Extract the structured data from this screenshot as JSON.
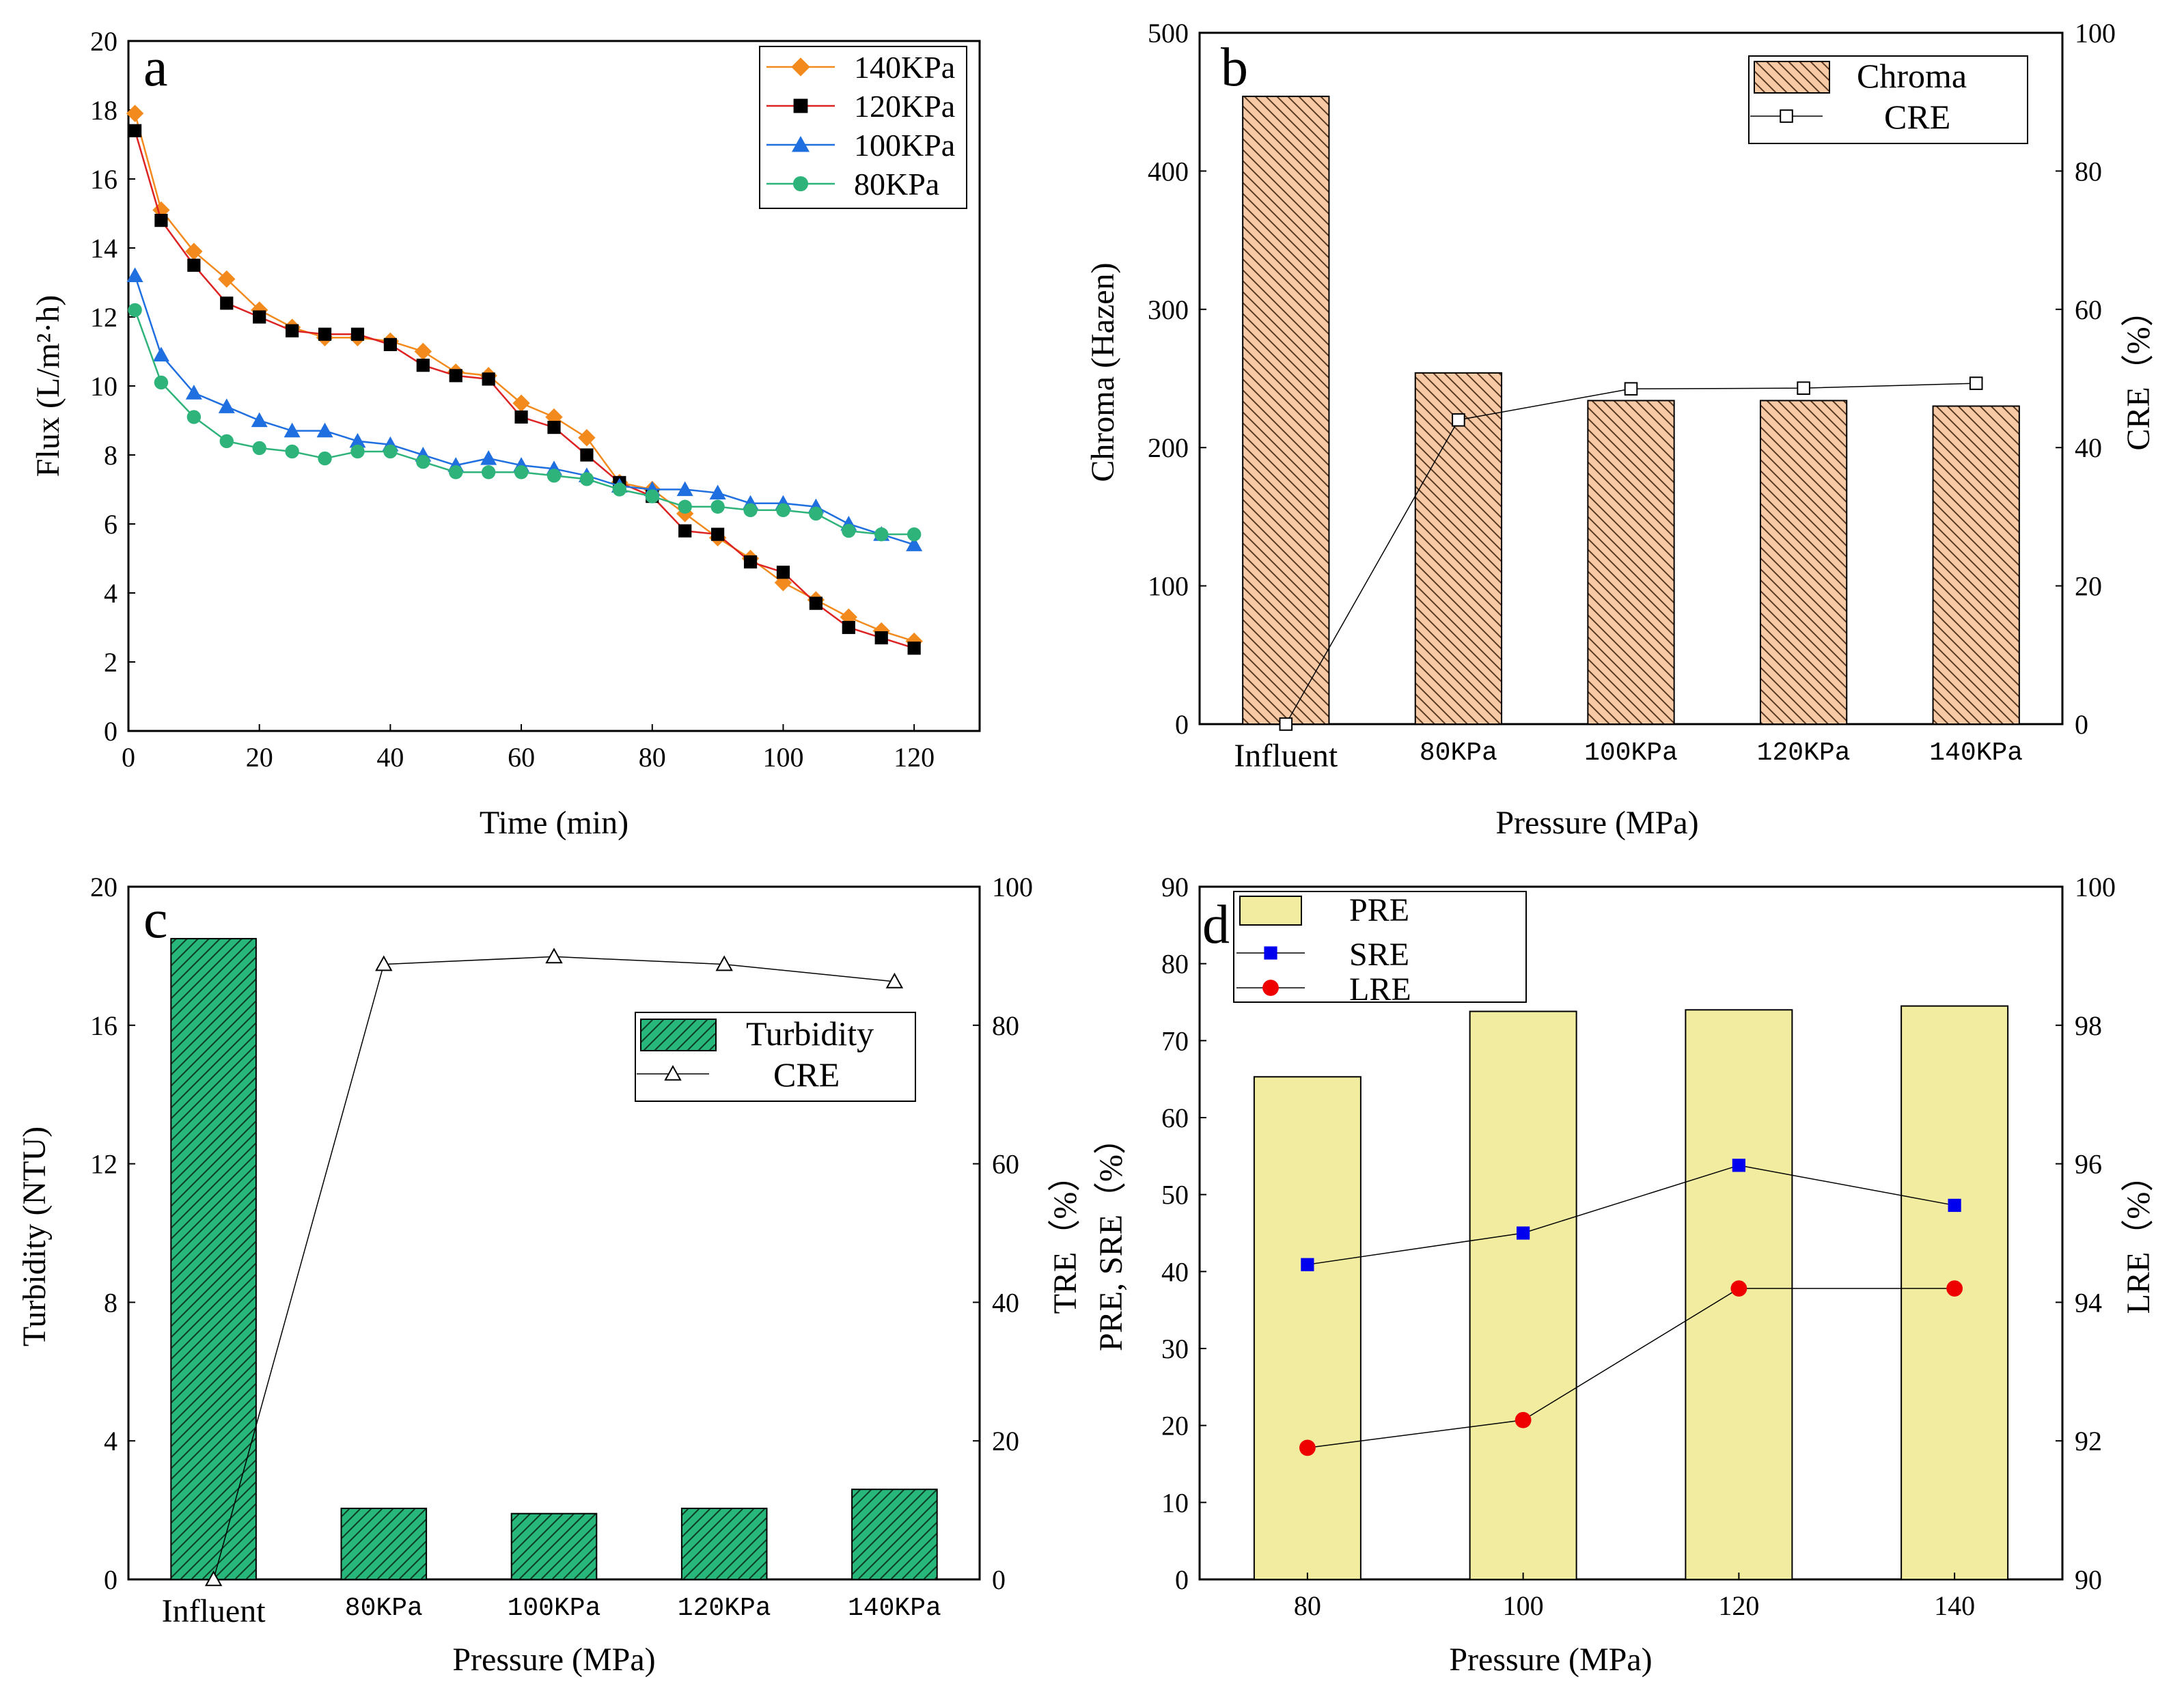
{
  "colors": {
    "orange": "#f28a1e",
    "black": "#000000",
    "blue": "#1f6fe0",
    "green": "#2eb37a",
    "chroma_fill": "#f7c9a4",
    "turbidity_fill": "#27b77a",
    "pre_fill": "#f1ec9f",
    "sre": "#0000ee",
    "lre": "#ee0000"
  },
  "chart_data": [
    {
      "panel": "a",
      "type": "line",
      "xlabel": "Time (min)",
      "ylabel": "Flux (L/m²·h)",
      "xlim": [
        0,
        130
      ],
      "ylim": [
        0,
        20
      ],
      "xticks": [
        "0",
        "20",
        "40",
        "60",
        "80",
        "100",
        "120"
      ],
      "yticks": [
        "0",
        "2",
        "4",
        "6",
        "8",
        "10",
        "12",
        "14",
        "16",
        "18",
        "20"
      ],
      "x": [
        1,
        5,
        10,
        15,
        20,
        25,
        30,
        35,
        40,
        45,
        50,
        55,
        60,
        65,
        70,
        75,
        80,
        85,
        90,
        95,
        100,
        105,
        110,
        115,
        120
      ],
      "legend_position": "top-right",
      "series": [
        {
          "name": "140KPa",
          "marker": "diamond",
          "color": "#f28a1e",
          "values": [
            17.9,
            15.1,
            13.9,
            13.1,
            12.2,
            11.7,
            11.4,
            11.4,
            11.3,
            11.0,
            10.4,
            10.3,
            9.5,
            9.1,
            8.5,
            7.2,
            7.0,
            6.3,
            5.6,
            5.0,
            4.3,
            3.8,
            3.3,
            2.9,
            2.6
          ]
        },
        {
          "name": "120KPa",
          "marker": "square",
          "color": "#000000",
          "values": [
            17.4,
            14.8,
            13.5,
            12.4,
            12.0,
            11.6,
            11.5,
            11.5,
            11.2,
            10.6,
            10.3,
            10.2,
            9.1,
            8.8,
            8.0,
            7.2,
            6.8,
            5.8,
            5.7,
            4.9,
            4.6,
            3.7,
            3.0,
            2.7,
            2.4
          ]
        },
        {
          "name": "100KPa",
          "marker": "triangle",
          "color": "#1f6fe0",
          "values": [
            13.2,
            10.9,
            9.8,
            9.4,
            9.0,
            8.7,
            8.7,
            8.4,
            8.3,
            8.0,
            7.7,
            7.9,
            7.7,
            7.6,
            7.4,
            7.1,
            7.0,
            7.0,
            6.9,
            6.6,
            6.6,
            6.5,
            6.0,
            5.7,
            5.4
          ]
        },
        {
          "name": "80KPa",
          "marker": "circle",
          "color": "#2eb37a",
          "values": [
            12.2,
            10.1,
            9.1,
            8.4,
            8.2,
            8.1,
            7.9,
            8.1,
            8.1,
            7.8,
            7.5,
            7.5,
            7.5,
            7.4,
            7.3,
            7.0,
            6.8,
            6.5,
            6.5,
            6.4,
            6.4,
            6.3,
            5.8,
            5.7,
            5.7
          ]
        }
      ]
    },
    {
      "panel": "b",
      "type": "bar",
      "xlabel": "Pressure (MPa)",
      "ylabel": "Chroma (Hazen)",
      "ylabel_right": "CRE（%）",
      "categories": [
        "Influent",
        "80KPa",
        "100KPa",
        "120KPa",
        "140KPa"
      ],
      "ylim": [
        0,
        500
      ],
      "ylim_right": [
        0,
        100
      ],
      "yticks": [
        "0",
        "100",
        "200",
        "300",
        "400",
        "500"
      ],
      "yticks_right": [
        "0",
        "20",
        "40",
        "60",
        "80",
        "100"
      ],
      "legend_position": "top-right",
      "series": [
        {
          "name": "Chroma",
          "kind": "bar",
          "axis": "left",
          "values": [
            454,
            254,
            234,
            234,
            230
          ]
        },
        {
          "name": "CRE",
          "kind": "line",
          "marker": "square-open",
          "axis": "right",
          "values": [
            0,
            44,
            48.5,
            48.6,
            49.3
          ]
        }
      ]
    },
    {
      "panel": "c",
      "type": "bar",
      "xlabel": "Pressure (MPa)",
      "ylabel": "Turbidity (NTU)",
      "ylabel_right": "TRE（%）",
      "categories": [
        "Influent",
        "80KPa",
        "100KPa",
        "120KPa",
        "140KPa"
      ],
      "ylim": [
        0,
        20
      ],
      "ylim_right": [
        0,
        100
      ],
      "yticks": [
        "0",
        "4",
        "8",
        "12",
        "16",
        "20"
      ],
      "yticks_right": [
        "0",
        "20",
        "40",
        "60",
        "80",
        "100"
      ],
      "legend_position": "upper-right",
      "series": [
        {
          "name": "Turbidity",
          "kind": "bar",
          "axis": "left",
          "values": [
            18.5,
            2.05,
            1.9,
            2.05,
            2.6
          ]
        },
        {
          "name": "CRE",
          "kind": "line",
          "marker": "triangle-open",
          "axis": "right",
          "values": [
            0,
            88.8,
            89.9,
            88.8,
            86.3
          ]
        }
      ]
    },
    {
      "panel": "d",
      "type": "bar",
      "xlabel": "Pressure (MPa)",
      "ylabel": "PRE, SRE（%）",
      "ylabel_right": "LRE（%）",
      "categories": [
        "80",
        "100",
        "120",
        "140"
      ],
      "ylim": [
        0,
        90
      ],
      "ylim_right": [
        90,
        100
      ],
      "yticks": [
        "0",
        "10",
        "20",
        "30",
        "40",
        "50",
        "60",
        "70",
        "80",
        "90"
      ],
      "yticks_right": [
        "90",
        "92",
        "94",
        "96",
        "98",
        "100"
      ],
      "legend_position": "top-left",
      "series": [
        {
          "name": "PRE",
          "kind": "bar",
          "axis": "left",
          "values": [
            65.3,
            73.8,
            74.0,
            74.5
          ]
        },
        {
          "name": "SRE",
          "kind": "line",
          "marker": "square",
          "color": "#0000ee",
          "axis": "left",
          "values": [
            40.9,
            45.0,
            53.8,
            48.6
          ]
        },
        {
          "name": "LRE",
          "kind": "line",
          "marker": "circle",
          "color": "#ee0000",
          "axis": "right",
          "values": [
            91.9,
            92.3,
            94.2,
            94.2
          ]
        }
      ]
    }
  ]
}
